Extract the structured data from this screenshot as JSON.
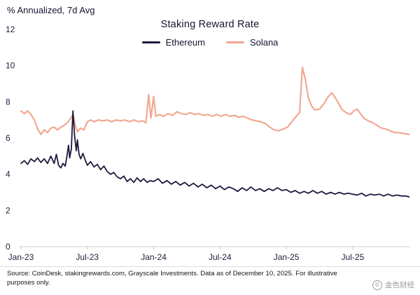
{
  "header": {
    "y_axis_title": "% Annualized, 7d Avg"
  },
  "chart_data": {
    "type": "line",
    "title": "Staking Reward Rate",
    "xlabel": "",
    "ylabel": "% Annualized, 7d Avg",
    "xlim": [
      0,
      35.2
    ],
    "ylim": [
      0,
      12
    ],
    "grid": false,
    "legend_position": "top-center",
    "y_ticks": [
      0,
      2,
      4,
      6,
      8,
      10,
      12
    ],
    "x_ticks": [
      {
        "pos": 0,
        "label": "Jan-23"
      },
      {
        "pos": 6,
        "label": "Jul-23"
      },
      {
        "pos": 12,
        "label": "Jan-24"
      },
      {
        "pos": 18,
        "label": "Jul-24"
      },
      {
        "pos": 24,
        "label": "Jan-25"
      },
      {
        "pos": 30,
        "label": "Jul-25"
      }
    ],
    "series": [
      {
        "name": "Ethereum",
        "color": "#1e1a3c",
        "width": 1.8,
        "points": [
          [
            0,
            4.6
          ],
          [
            0.3,
            4.75
          ],
          [
            0.6,
            4.55
          ],
          [
            0.9,
            4.85
          ],
          [
            1.2,
            4.7
          ],
          [
            1.5,
            4.9
          ],
          [
            1.8,
            4.65
          ],
          [
            2.1,
            4.85
          ],
          [
            2.4,
            4.6
          ],
          [
            2.7,
            5.0
          ],
          [
            3.0,
            4.6
          ],
          [
            3.2,
            5.1
          ],
          [
            3.4,
            4.5
          ],
          [
            3.6,
            4.35
          ],
          [
            3.8,
            4.6
          ],
          [
            4.0,
            4.45
          ],
          [
            4.15,
            5.0
          ],
          [
            4.3,
            5.6
          ],
          [
            4.4,
            4.9
          ],
          [
            4.55,
            5.4
          ],
          [
            4.7,
            7.5
          ],
          [
            4.85,
            6.1
          ],
          [
            5.0,
            5.3
          ],
          [
            5.1,
            5.9
          ],
          [
            5.25,
            5.1
          ],
          [
            5.4,
            4.85
          ],
          [
            5.6,
            5.15
          ],
          [
            5.8,
            4.8
          ],
          [
            6.0,
            4.5
          ],
          [
            6.3,
            4.7
          ],
          [
            6.6,
            4.4
          ],
          [
            6.9,
            4.55
          ],
          [
            7.2,
            4.25
          ],
          [
            7.5,
            4.45
          ],
          [
            7.8,
            4.15
          ],
          [
            8.1,
            4.0
          ],
          [
            8.4,
            4.1
          ],
          [
            8.7,
            3.85
          ],
          [
            9.0,
            3.75
          ],
          [
            9.3,
            3.9
          ],
          [
            9.6,
            3.6
          ],
          [
            9.9,
            3.75
          ],
          [
            10.2,
            3.55
          ],
          [
            10.5,
            3.8
          ],
          [
            10.8,
            3.6
          ],
          [
            11.1,
            3.75
          ],
          [
            11.4,
            3.55
          ],
          [
            11.7,
            3.65
          ],
          [
            12.0,
            3.6
          ],
          [
            12.4,
            3.75
          ],
          [
            12.8,
            3.5
          ],
          [
            13.2,
            3.65
          ],
          [
            13.6,
            3.45
          ],
          [
            14.0,
            3.6
          ],
          [
            14.4,
            3.4
          ],
          [
            14.8,
            3.55
          ],
          [
            15.2,
            3.35
          ],
          [
            15.6,
            3.5
          ],
          [
            16.0,
            3.3
          ],
          [
            16.4,
            3.45
          ],
          [
            16.8,
            3.25
          ],
          [
            17.2,
            3.4
          ],
          [
            17.6,
            3.2
          ],
          [
            18.0,
            3.35
          ],
          [
            18.4,
            3.15
          ],
          [
            18.8,
            3.3
          ],
          [
            19.2,
            3.2
          ],
          [
            19.6,
            3.05
          ],
          [
            20.0,
            3.25
          ],
          [
            20.4,
            3.1
          ],
          [
            20.8,
            3.3
          ],
          [
            21.2,
            3.1
          ],
          [
            21.6,
            3.2
          ],
          [
            22.0,
            3.05
          ],
          [
            22.4,
            3.2
          ],
          [
            22.8,
            3.1
          ],
          [
            23.2,
            3.25
          ],
          [
            23.6,
            3.1
          ],
          [
            24.0,
            3.15
          ],
          [
            24.4,
            3.0
          ],
          [
            24.8,
            3.1
          ],
          [
            25.2,
            2.95
          ],
          [
            25.6,
            3.05
          ],
          [
            26.0,
            2.95
          ],
          [
            26.4,
            3.1
          ],
          [
            26.8,
            2.95
          ],
          [
            27.2,
            3.05
          ],
          [
            27.6,
            2.9
          ],
          [
            28.0,
            3.0
          ],
          [
            28.4,
            2.9
          ],
          [
            28.8,
            3.0
          ],
          [
            29.2,
            2.9
          ],
          [
            29.6,
            2.95
          ],
          [
            30.0,
            2.9
          ],
          [
            30.4,
            2.85
          ],
          [
            30.8,
            2.95
          ],
          [
            31.2,
            2.8
          ],
          [
            31.6,
            2.9
          ],
          [
            32.0,
            2.85
          ],
          [
            32.4,
            2.9
          ],
          [
            32.8,
            2.8
          ],
          [
            33.2,
            2.9
          ],
          [
            33.6,
            2.8
          ],
          [
            34.0,
            2.85
          ],
          [
            34.4,
            2.8
          ],
          [
            34.8,
            2.8
          ],
          [
            35.1,
            2.75
          ]
        ]
      },
      {
        "name": "Solana",
        "color": "#f2a893",
        "width": 2.2,
        "points": [
          [
            0,
            7.5
          ],
          [
            0.3,
            7.35
          ],
          [
            0.6,
            7.5
          ],
          [
            0.9,
            7.3
          ],
          [
            1.2,
            7.0
          ],
          [
            1.5,
            6.5
          ],
          [
            1.8,
            6.2
          ],
          [
            2.1,
            6.45
          ],
          [
            2.4,
            6.3
          ],
          [
            2.7,
            6.55
          ],
          [
            3.0,
            6.6
          ],
          [
            3.3,
            6.45
          ],
          [
            3.6,
            6.6
          ],
          [
            3.9,
            6.7
          ],
          [
            4.2,
            6.85
          ],
          [
            4.5,
            7.1
          ],
          [
            4.7,
            7.3
          ],
          [
            4.9,
            6.7
          ],
          [
            5.1,
            6.35
          ],
          [
            5.4,
            6.55
          ],
          [
            5.7,
            6.45
          ],
          [
            6.0,
            6.9
          ],
          [
            6.3,
            7.0
          ],
          [
            6.6,
            6.9
          ],
          [
            7.0,
            7.0
          ],
          [
            7.4,
            6.95
          ],
          [
            7.8,
            7.0
          ],
          [
            8.2,
            6.9
          ],
          [
            8.6,
            7.0
          ],
          [
            9.0,
            6.95
          ],
          [
            9.4,
            7.0
          ],
          [
            9.8,
            6.9
          ],
          [
            10.2,
            7.0
          ],
          [
            10.6,
            6.9
          ],
          [
            11.0,
            6.95
          ],
          [
            11.3,
            6.85
          ],
          [
            11.55,
            8.4
          ],
          [
            11.75,
            7.1
          ],
          [
            12.0,
            8.3
          ],
          [
            12.2,
            7.2
          ],
          [
            12.5,
            7.3
          ],
          [
            12.9,
            7.2
          ],
          [
            13.3,
            7.35
          ],
          [
            13.7,
            7.25
          ],
          [
            14.1,
            7.45
          ],
          [
            14.5,
            7.35
          ],
          [
            14.9,
            7.3
          ],
          [
            15.3,
            7.4
          ],
          [
            15.7,
            7.3
          ],
          [
            16.1,
            7.35
          ],
          [
            16.5,
            7.25
          ],
          [
            16.9,
            7.3
          ],
          [
            17.3,
            7.2
          ],
          [
            17.7,
            7.3
          ],
          [
            18.1,
            7.2
          ],
          [
            18.5,
            7.3
          ],
          [
            18.9,
            7.2
          ],
          [
            19.3,
            7.25
          ],
          [
            19.7,
            7.15
          ],
          [
            20.1,
            7.2
          ],
          [
            20.5,
            7.1
          ],
          [
            20.9,
            7.0
          ],
          [
            21.3,
            6.95
          ],
          [
            21.7,
            6.9
          ],
          [
            22.1,
            6.8
          ],
          [
            22.5,
            6.6
          ],
          [
            22.9,
            6.45
          ],
          [
            23.3,
            6.4
          ],
          [
            23.7,
            6.5
          ],
          [
            24.1,
            6.6
          ],
          [
            24.5,
            6.9
          ],
          [
            24.9,
            7.2
          ],
          [
            25.2,
            7.4
          ],
          [
            25.45,
            9.9
          ],
          [
            25.7,
            9.3
          ],
          [
            26.0,
            8.2
          ],
          [
            26.3,
            7.75
          ],
          [
            26.6,
            7.55
          ],
          [
            27.0,
            7.6
          ],
          [
            27.4,
            7.9
          ],
          [
            27.8,
            8.3
          ],
          [
            28.1,
            8.5
          ],
          [
            28.4,
            8.25
          ],
          [
            28.7,
            7.95
          ],
          [
            29.0,
            7.6
          ],
          [
            29.4,
            7.4
          ],
          [
            29.8,
            7.3
          ],
          [
            30.1,
            7.5
          ],
          [
            30.4,
            7.6
          ],
          [
            30.7,
            7.35
          ],
          [
            31.0,
            7.1
          ],
          [
            31.4,
            6.95
          ],
          [
            31.8,
            6.85
          ],
          [
            32.2,
            6.7
          ],
          [
            32.6,
            6.55
          ],
          [
            33.0,
            6.5
          ],
          [
            33.4,
            6.4
          ],
          [
            33.8,
            6.3
          ],
          [
            34.2,
            6.3
          ],
          [
            34.6,
            6.25
          ],
          [
            35.1,
            6.2
          ]
        ]
      }
    ],
    "colors": {
      "axis": "#c9c9c9",
      "tick_text": "#23203f"
    }
  },
  "footer": {
    "source_text": "Source: CoinDesk, stakingrewards.com, Grayscale Investments. Data as of December 10, 2025. For illustrative purposes only.",
    "watermark_text": "金色财经",
    "watermark_icon_glyph": "©"
  }
}
